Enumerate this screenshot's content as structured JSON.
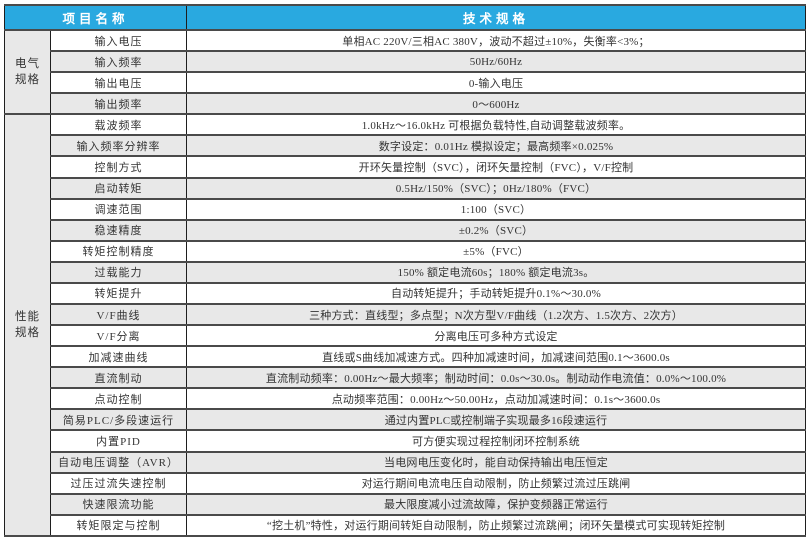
{
  "colors": {
    "header_bg": "#29a9e0",
    "header_text": "#ffffff",
    "shade_bg": "#e8e8e8",
    "border_h": "#4a4a4a",
    "border_v": "#1e1e1e",
    "text": "#333333",
    "page_bg": "#ffffff"
  },
  "table": {
    "header": {
      "item_col": "项目名称",
      "spec_col": "技术规格"
    },
    "groups": [
      {
        "id": "electrical",
        "label_lines": [
          "电气",
          "规格"
        ],
        "rows": [
          {
            "item": "输入电压",
            "spec": "单相AC 220V/三相AC 380V，波动不超过±10%，失衡率<3%；",
            "shade": false
          },
          {
            "item": "输入频率",
            "spec": "50Hz/60Hz",
            "shade": true
          },
          {
            "item": "输出电压",
            "spec": "0-输入电压",
            "shade": false
          },
          {
            "item": "输出频率",
            "spec": "0～600Hz",
            "shade": true
          }
        ]
      },
      {
        "id": "performance",
        "label_lines": [
          "性能",
          "规格"
        ],
        "rows": [
          {
            "item": "载波频率",
            "spec": "1.0kHz～16.0kHz 可根据负载特性,自动调整载波频率。",
            "shade": false
          },
          {
            "item": "输入频率分辨率",
            "spec": "数字设定：0.01Hz 模拟设定；最高频率×0.025%",
            "shade": true
          },
          {
            "item": "控制方式",
            "spec": "开环矢量控制（SVC），闭环矢量控制（FVC），V/F控制",
            "shade": false
          },
          {
            "item": "启动转矩",
            "spec": "0.5Hz/150%（SVC）；0Hz/180%（FVC）",
            "shade": true
          },
          {
            "item": "调速范围",
            "spec": "1:100（SVC）",
            "shade": false
          },
          {
            "item": "稳速精度",
            "spec": "±0.2%（SVC）",
            "shade": true
          },
          {
            "item": "转矩控制精度",
            "spec": "±5%（FVC）",
            "shade": false
          },
          {
            "item": "过载能力",
            "spec": "150% 额定电流60s；180% 额定电流3s。",
            "shade": true
          },
          {
            "item": "转矩提升",
            "spec": "自动转矩提升；手动转矩提升0.1%～30.0%",
            "shade": false
          },
          {
            "item": "V/F曲线",
            "spec": "三种方式：直线型；多点型；N次方型V/F曲线（1.2次方、1.5次方、2次方）",
            "shade": true
          },
          {
            "item": "V/F分离",
            "spec": "分离电压可多种方式设定",
            "shade": false
          },
          {
            "item": "加减速曲线",
            "spec": "直线或S曲线加减速方式。四种加减速时间，加减速间范围0.1～3600.0s",
            "shade": false
          },
          {
            "item": "直流制动",
            "spec": "直流制动频率：0.00Hz～最大频率；制动时间：0.0s～30.0s。制动动作电流值：0.0%～100.0%",
            "shade": true
          },
          {
            "item": "点动控制",
            "spec": "点动频率范围：0.00Hz～50.00Hz，点动加减速时间：0.1s～3600.0s",
            "shade": false
          },
          {
            "item": "简易PLC/多段速运行",
            "spec": "通过内置PLC或控制端子实现最多16段速运行",
            "shade": true
          },
          {
            "item": "内置PID",
            "spec": "可方便实现过程控制闭环控制系统",
            "shade": false
          },
          {
            "item": "自动电压调整（AVR）",
            "spec": "当电网电压变化时，能自动保持输出电压恒定",
            "shade": true
          },
          {
            "item": "过压过流失速控制",
            "spec": "对运行期间电流电压自动限制，防止频繁过流过压跳闸",
            "shade": false
          },
          {
            "item": "快速限流功能",
            "spec": "最大限度减小过流故障，保护变频器正常运行",
            "shade": true
          },
          {
            "item": "转矩限定与控制",
            "spec": "“挖土机”特性，对运行期间转矩自动限制，防止频繁过流跳闸；闭环矢量模式可实现转矩控制",
            "shade": false
          }
        ]
      }
    ]
  }
}
